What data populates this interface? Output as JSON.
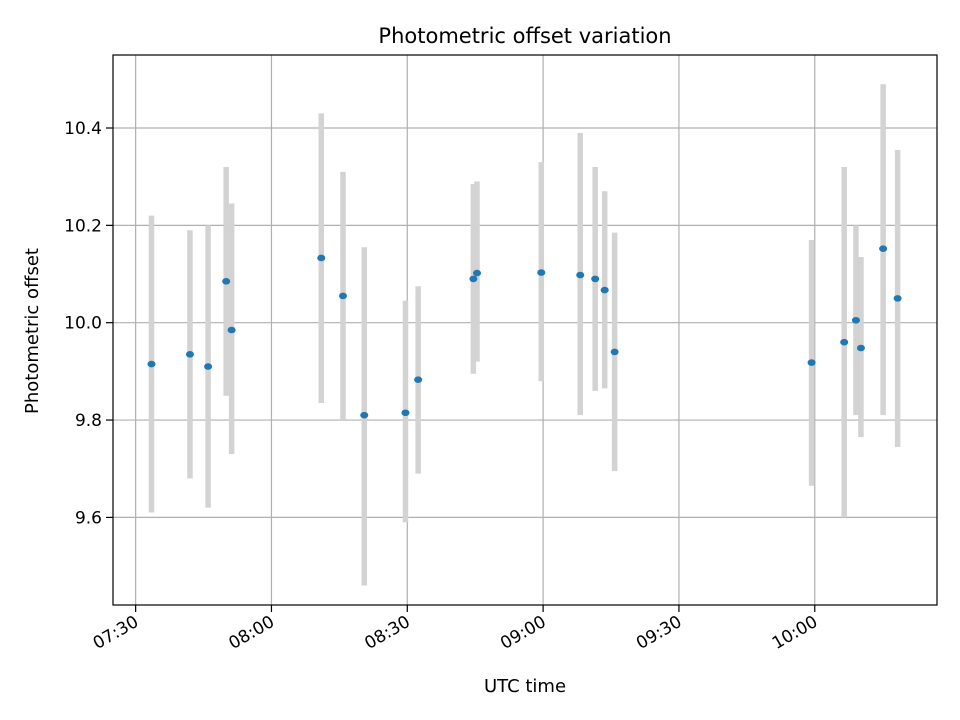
{
  "chart_data": {
    "type": "scatter",
    "title": "Photometric offset variation",
    "xlabel": "UTC time",
    "ylabel": "Photometric offset",
    "grid": true,
    "legend": "none",
    "xlim": [
      "07:25",
      "10:27"
    ],
    "ylim": [
      9.42,
      10.55
    ],
    "x_ticks": [
      "07:30",
      "08:00",
      "08:30",
      "09:00",
      "09:30",
      "10:00"
    ],
    "y_ticks": [
      9.6,
      9.8,
      10.0,
      10.2,
      10.4
    ],
    "y_tick_labels": [
      "9.6",
      "9.8",
      "10.0",
      "10.2",
      "10.4"
    ],
    "colors": {
      "point": "#1f77b4",
      "errorbar": "#d3d3d3",
      "grid": "#b0b0b0"
    },
    "points": [
      {
        "time": "07:33.5",
        "y": 9.915,
        "ylo": 9.61,
        "yhi": 10.22
      },
      {
        "time": "07:42.0",
        "y": 9.935,
        "ylo": 9.68,
        "yhi": 10.19
      },
      {
        "time": "07:46.0",
        "y": 9.91,
        "ylo": 9.62,
        "yhi": 10.2
      },
      {
        "time": "07:50.0",
        "y": 10.085,
        "ylo": 9.85,
        "yhi": 10.32
      },
      {
        "time": "07:51.2",
        "y": 9.985,
        "ylo": 9.73,
        "yhi": 10.245
      },
      {
        "time": "08:11.0",
        "y": 10.133,
        "ylo": 9.835,
        "yhi": 10.43
      },
      {
        "time": "08:15.8",
        "y": 10.055,
        "ylo": 9.8,
        "yhi": 10.31
      },
      {
        "time": "08:20.5",
        "y": 9.81,
        "ylo": 9.46,
        "yhi": 10.155
      },
      {
        "time": "08:29.6",
        "y": 9.815,
        "ylo": 9.59,
        "yhi": 10.045
      },
      {
        "time": "08:32.4",
        "y": 9.883,
        "ylo": 9.69,
        "yhi": 10.075
      },
      {
        "time": "08:44.6",
        "y": 10.09,
        "ylo": 9.895,
        "yhi": 10.285
      },
      {
        "time": "08:45.4",
        "y": 10.102,
        "ylo": 9.92,
        "yhi": 10.29
      },
      {
        "time": "08:59.6",
        "y": 10.103,
        "ylo": 9.88,
        "yhi": 10.33
      },
      {
        "time": "09:08.2",
        "y": 10.098,
        "ylo": 9.81,
        "yhi": 10.39
      },
      {
        "time": "09:11.5",
        "y": 10.09,
        "ylo": 9.86,
        "yhi": 10.32
      },
      {
        "time": "09:13.6",
        "y": 10.067,
        "ylo": 9.865,
        "yhi": 10.27
      },
      {
        "time": "09:15.8",
        "y": 9.94,
        "ylo": 9.695,
        "yhi": 10.185
      },
      {
        "time": "09:59.3",
        "y": 9.918,
        "ylo": 9.665,
        "yhi": 10.17
      },
      {
        "time": "10:06.5",
        "y": 9.96,
        "ylo": 9.6,
        "yhi": 10.32
      },
      {
        "time": "10:09.1",
        "y": 10.005,
        "ylo": 9.81,
        "yhi": 10.2
      },
      {
        "time": "10:10.2",
        "y": 9.948,
        "ylo": 9.765,
        "yhi": 10.135
      },
      {
        "time": "10:15.1",
        "y": 10.152,
        "ylo": 9.81,
        "yhi": 10.49
      },
      {
        "time": "10:18.3",
        "y": 10.05,
        "ylo": 9.745,
        "yhi": 10.355
      }
    ]
  }
}
